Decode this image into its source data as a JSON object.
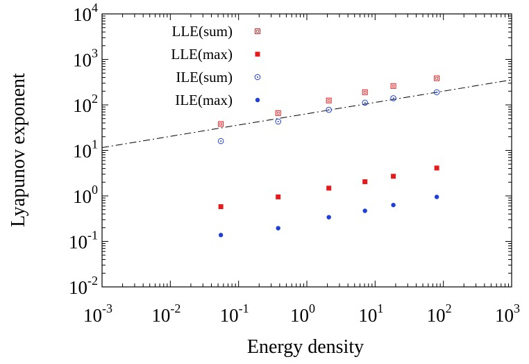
{
  "chart_data": {
    "type": "scatter",
    "title": "",
    "xlabel": "Energy density",
    "ylabel": "Lyapunov exponent",
    "xscale": "log",
    "yscale": "log",
    "xlim": [
      0.001,
      1000
    ],
    "ylim": [
      0.01,
      10000
    ],
    "x_ticks": [
      {
        "base": "10",
        "exp": "-3",
        "value": 0.001
      },
      {
        "base": "10",
        "exp": "-2",
        "value": 0.01
      },
      {
        "base": "10",
        "exp": "-1",
        "value": 0.1
      },
      {
        "base": "10",
        "exp": "0",
        "value": 1
      },
      {
        "base": "10",
        "exp": "1",
        "value": 10
      },
      {
        "base": "10",
        "exp": "2",
        "value": 100
      },
      {
        "base": "10",
        "exp": "3",
        "value": 1000
      }
    ],
    "y_ticks": [
      {
        "base": "10",
        "exp": "-2",
        "value": 0.01
      },
      {
        "base": "10",
        "exp": "-1",
        "value": 0.1
      },
      {
        "base": "10",
        "exp": "0",
        "value": 1
      },
      {
        "base": "10",
        "exp": "1",
        "value": 10
      },
      {
        "base": "10",
        "exp": "2",
        "value": 100
      },
      {
        "base": "10",
        "exp": "3",
        "value": 1000
      },
      {
        "base": "10",
        "exp": "4",
        "value": 10000
      }
    ],
    "legend_position": "top-left",
    "series": [
      {
        "name": "LLE(sum)",
        "marker": "open-square",
        "color": "#e41a1c",
        "x": [
          0.055,
          0.38,
          2.1,
          7.1,
          18.5,
          80
        ],
        "y": [
          38,
          66,
          125,
          190,
          260,
          385
        ]
      },
      {
        "name": "LLE(max)",
        "marker": "filled-square",
        "color": "#e41a1c",
        "x": [
          0.055,
          0.38,
          2.1,
          7.1,
          18.5,
          80
        ],
        "y": [
          0.58,
          0.95,
          1.48,
          2.05,
          2.7,
          4.1
        ]
      },
      {
        "name": "ILE(sum)",
        "marker": "open-circle",
        "color": "#1f3fd6",
        "x": [
          0.055,
          0.38,
          2.1,
          7.1,
          18.5,
          80
        ],
        "y": [
          16,
          43,
          78,
          112,
          140,
          190
        ]
      },
      {
        "name": "ILE(max)",
        "marker": "filled-circle",
        "color": "#1f3fd6",
        "x": [
          0.055,
          0.38,
          2.1,
          7.1,
          18.5,
          80
        ],
        "y": [
          0.138,
          0.195,
          0.34,
          0.47,
          0.63,
          0.95
        ]
      }
    ],
    "fit_line": {
      "style": "dash-dot",
      "color": "#000000",
      "x": [
        0.001,
        1000
      ],
      "y": [
        11.5,
        355
      ]
    }
  }
}
